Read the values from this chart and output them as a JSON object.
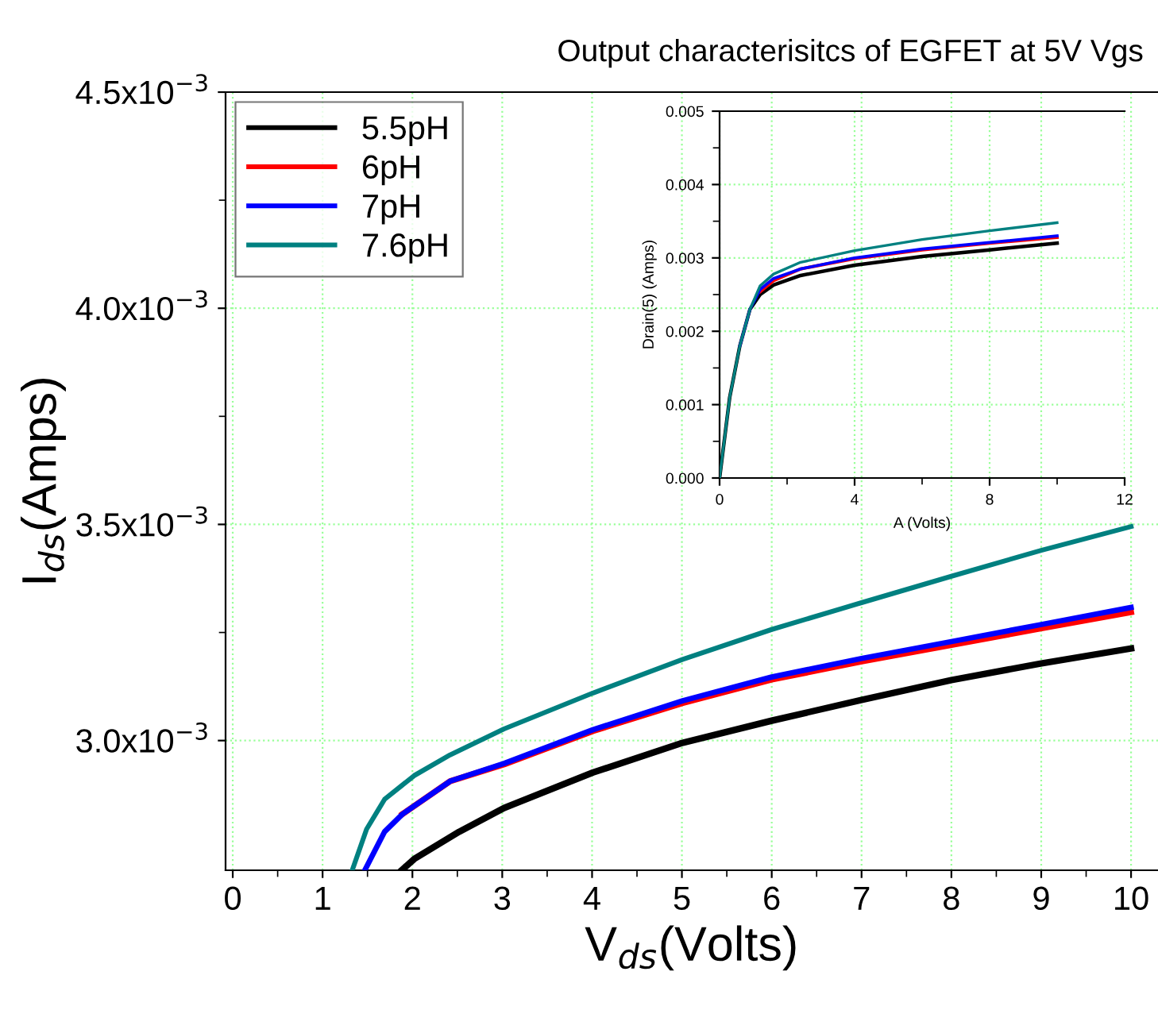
{
  "chart_data": [
    {
      "type": "line",
      "title": "Output characterisitcs of EGFET at 5V Vgs",
      "xlabel": "V$_{ds}$(Volts)",
      "ylabel": "I$_{ds}$(Amps)",
      "xlim": [
        -0.08,
        10.3
      ],
      "ylim": [
        0.0027,
        0.0045
      ],
      "xticks": [
        0,
        1,
        2,
        3,
        4,
        5,
        6,
        7,
        8,
        9,
        10
      ],
      "yticks": [
        {
          "value": 0.003,
          "label": "3.0x10$^{−3}$"
        },
        {
          "value": 0.0035,
          "label": "3.5x10$^{−3}$"
        },
        {
          "value": 0.004,
          "label": "4.0x10$^{−3}$"
        },
        {
          "value": 0.0045,
          "label": "4.5x10$^{−3}$"
        }
      ],
      "grid": true,
      "legend": "top left",
      "series": [
        {
          "name": "5.5pH",
          "color": "#000000",
          "x": [
            1.88,
            2.02,
            2.52,
            3.02,
            4.01,
            5.01,
            6.0,
            7.0,
            8.0,
            8.99,
            10.0
          ],
          "values": [
            0.0027,
            0.002726,
            0.002789,
            0.002844,
            0.002926,
            0.002995,
            0.003046,
            0.003094,
            0.00314,
            0.003178,
            0.003213
          ]
        },
        {
          "name": "6pH",
          "color": "#ff0000",
          "x": [
            1.89,
            2.42,
            3.02,
            4.01,
            5.01,
            6.0,
            7.0,
            8.0,
            8.99,
            10.0
          ],
          "values": [
            0.00283,
            0.002906,
            0.002945,
            0.003022,
            0.003087,
            0.003141,
            0.003183,
            0.003221,
            0.003259,
            0.003297
          ]
        },
        {
          "name": "7pH",
          "color": "#0000ff",
          "x": [
            1.47,
            1.69,
            1.89,
            2.42,
            3.02,
            4.01,
            5.01,
            6.0,
            7.0,
            8.0,
            8.99,
            10.0
          ],
          "values": [
            0.0027,
            0.002789,
            0.00283,
            0.002906,
            0.002947,
            0.003025,
            0.003092,
            0.003147,
            0.00319,
            0.003229,
            0.003268,
            0.003308
          ]
        },
        {
          "name": "7.6pH",
          "color": "#008080",
          "x": [
            1.33,
            1.49,
            1.69,
            2.02,
            2.42,
            3.02,
            4.01,
            5.01,
            6.0,
            7.0,
            8.0,
            9.0,
            10.0
          ],
          "values": [
            0.0027,
            0.002795,
            0.002864,
            0.002919,
            0.002967,
            0.003027,
            0.00311,
            0.003188,
            0.003257,
            0.003319,
            0.00338,
            0.00344,
            0.003495
          ]
        }
      ]
    },
    {
      "type": "line",
      "xlabel": "A (Volts)",
      "ylabel": "Drain(5) (Amps)",
      "xlim": [
        0,
        12
      ],
      "ylim": [
        0,
        0.005
      ],
      "xticks": [
        0,
        4,
        8,
        12
      ],
      "yticks": [
        {
          "value": 0,
          "label": "0.000"
        },
        {
          "value": 0.001,
          "label": "0.001"
        },
        {
          "value": 0.002,
          "label": "0.002"
        },
        {
          "value": 0.003,
          "label": "0.003"
        },
        {
          "value": 0.004,
          "label": "0.004"
        },
        {
          "value": 0.005,
          "label": "0.005"
        }
      ],
      "grid": true,
      "series": [
        {
          "color": "#000000",
          "x": [
            0,
            0.3,
            0.6,
            0.9,
            1.2,
            1.6,
            2.4,
            4,
            6,
            8,
            10
          ],
          "values": [
            0,
            0.0011,
            0.0018,
            0.0023,
            0.0025,
            0.00263,
            0.00276,
            0.0029,
            0.00302,
            0.00311,
            0.0032
          ]
        },
        {
          "color": "#ff0000",
          "x": [
            1.2,
            1.6,
            2.4,
            4,
            6,
            8,
            10
          ],
          "values": [
            0.00254,
            0.00269,
            0.00285,
            0.00299,
            0.00311,
            0.0032,
            0.00328
          ]
        },
        {
          "color": "#0000ff",
          "x": [
            0.6,
            0.9,
            1.2,
            1.6,
            2.4,
            4,
            6,
            8,
            10
          ],
          "values": [
            0.0018,
            0.0023,
            0.00257,
            0.00272,
            0.00285,
            0.003,
            0.00312,
            0.00321,
            0.0033
          ]
        },
        {
          "color": "#008080",
          "x": [
            0,
            0.3,
            0.6,
            0.9,
            1.2,
            1.6,
            2.4,
            4,
            6,
            8,
            10
          ],
          "values": [
            0,
            0.0011,
            0.0018,
            0.0023,
            0.00262,
            0.00278,
            0.00294,
            0.0031,
            0.00325,
            0.00337,
            0.00348
          ]
        }
      ]
    }
  ]
}
